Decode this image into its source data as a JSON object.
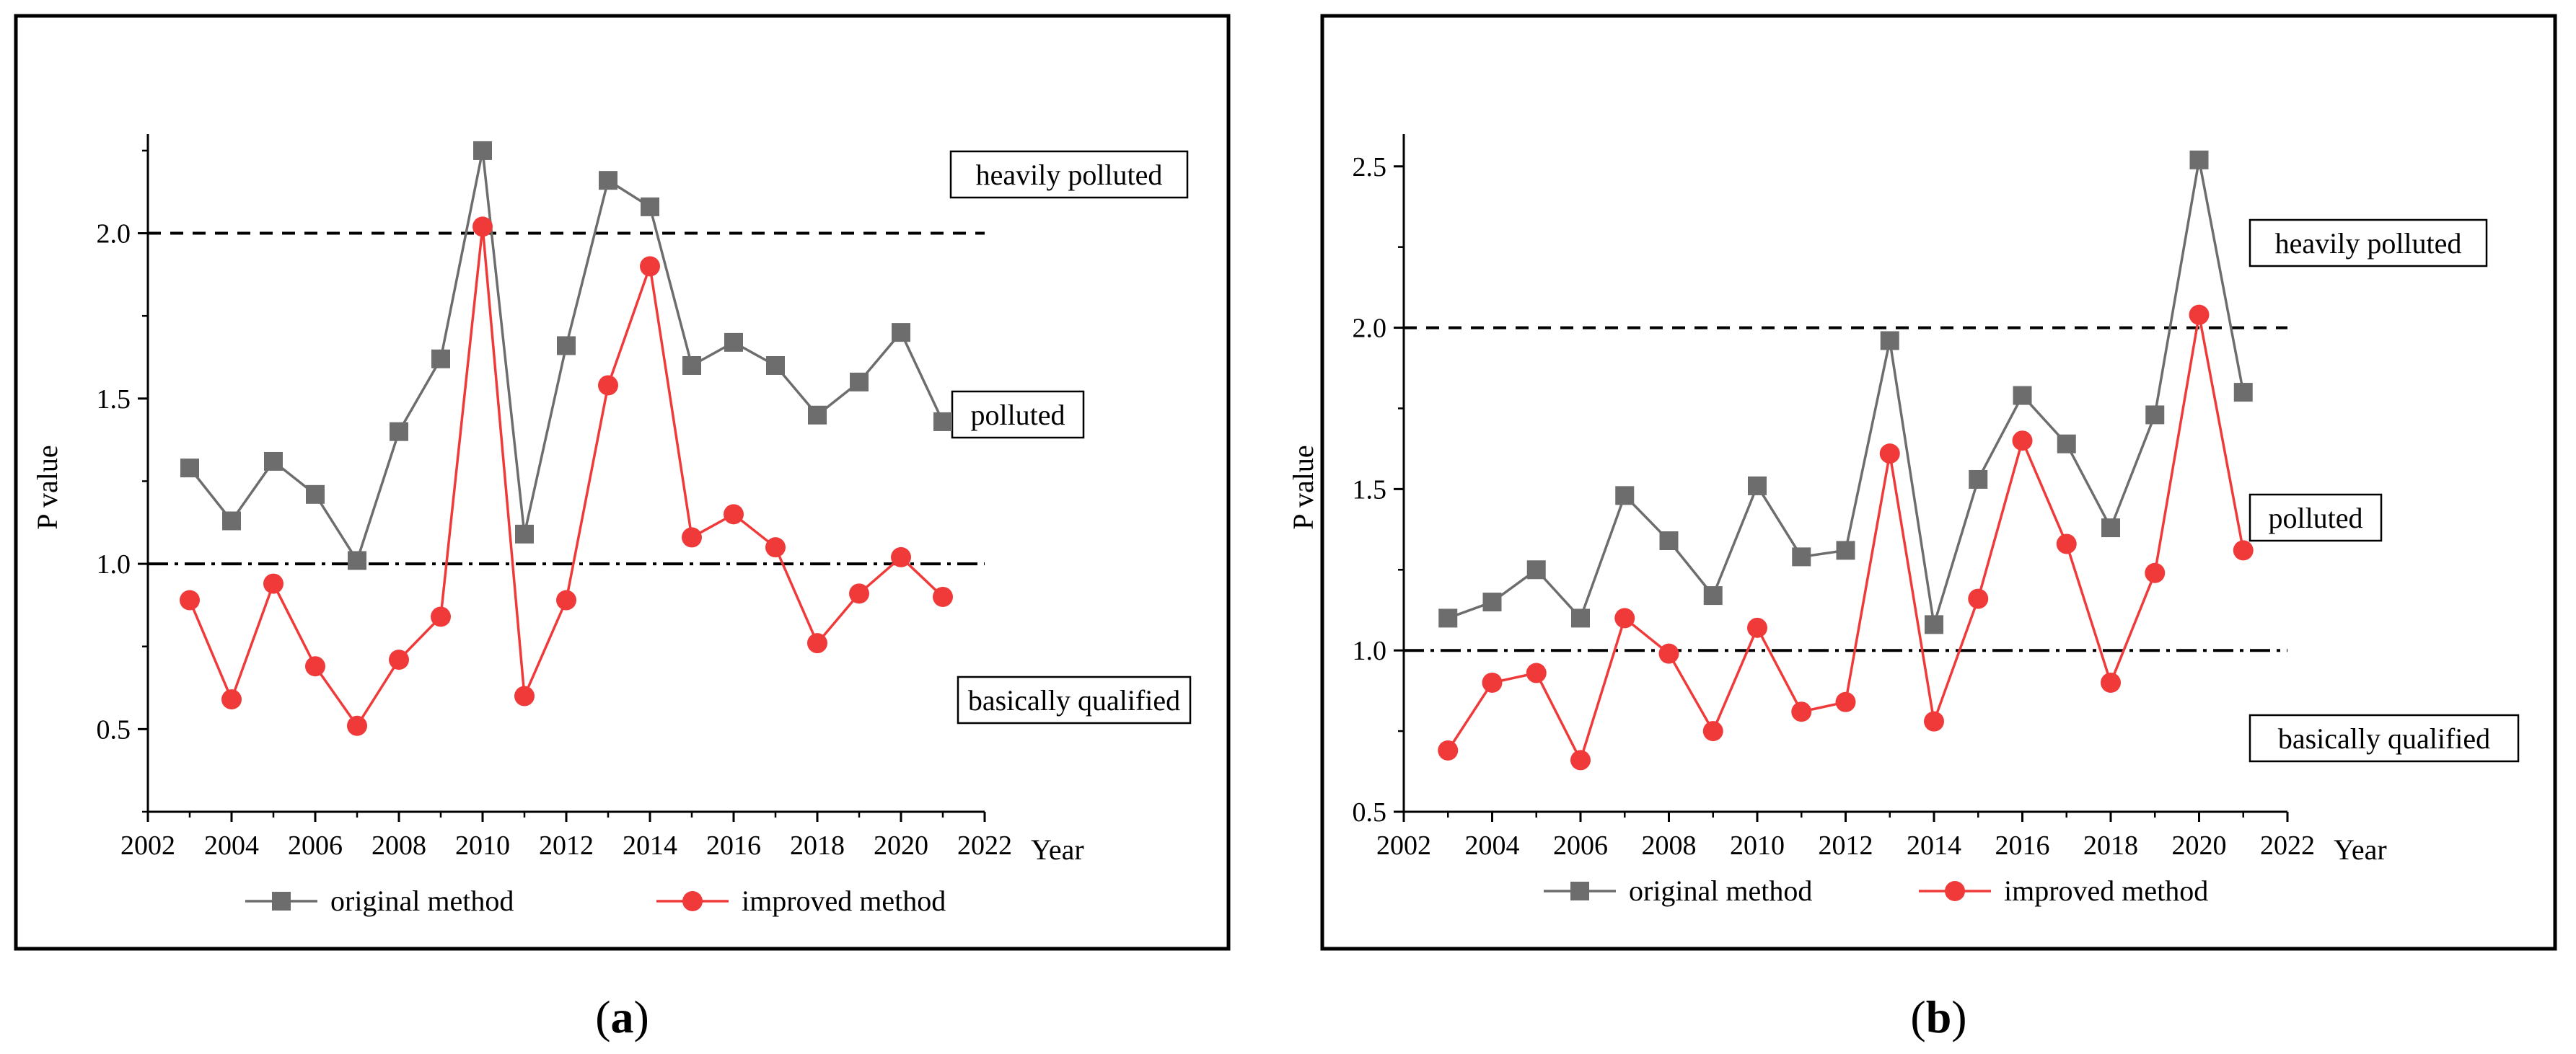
{
  "chart_data": [
    {
      "type": "line",
      "panel_label": "a",
      "ylabel": "P value",
      "xlabel": "Year",
      "xlim": [
        2002,
        2022
      ],
      "ylim": [
        0.25,
        2.3
      ],
      "x_ticks": [
        2002,
        2004,
        2006,
        2008,
        2010,
        2012,
        2014,
        2016,
        2018,
        2020,
        2022
      ],
      "y_ticks": [
        0.5,
        1.0,
        1.5,
        2.0
      ],
      "x_tick_labels": [
        "2002",
        "2004",
        "2006",
        "2008",
        "2010",
        "2012",
        "2014",
        "2016",
        "2018",
        "2020",
        "2022"
      ],
      "y_tick_labels": [
        "0.5",
        "1.0",
        "1.5",
        "2.0"
      ],
      "x": [
        2003,
        2004,
        2005,
        2006,
        2007,
        2008,
        2009,
        2010,
        2011,
        2012,
        2013,
        2014,
        2015,
        2016,
        2017,
        2018,
        2019,
        2020,
        2021
      ],
      "series": [
        {
          "name": "original method",
          "color": "#6d6d6d",
          "marker": "square",
          "values": [
            1.29,
            1.13,
            1.31,
            1.21,
            1.01,
            1.4,
            1.62,
            2.25,
            1.09,
            1.66,
            2.16,
            2.08,
            1.6,
            1.67,
            1.6,
            1.45,
            1.55,
            1.7,
            1.43
          ]
        },
        {
          "name": "improved method",
          "color": "#f03a3a",
          "marker": "circle",
          "values": [
            0.89,
            0.59,
            0.94,
            0.69,
            0.51,
            0.71,
            0.84,
            2.02,
            0.6,
            0.89,
            1.54,
            1.9,
            1.08,
            1.15,
            1.05,
            0.76,
            0.91,
            1.02,
            0.9
          ]
        }
      ],
      "thresholds": [
        {
          "value": 2.0,
          "style": "dashed"
        },
        {
          "value": 1.0,
          "style": "dashdot"
        }
      ],
      "zone_labels": [
        "heavily polluted",
        "polluted",
        "basically qualified"
      ]
    },
    {
      "type": "line",
      "panel_label": "b",
      "ylabel": "P value",
      "xlabel": "Year",
      "xlim": [
        2002,
        2022
      ],
      "ylim": [
        0.5,
        2.6
      ],
      "x_ticks": [
        2002,
        2004,
        2006,
        2008,
        2010,
        2012,
        2014,
        2016,
        2018,
        2020,
        2022
      ],
      "y_ticks": [
        0.5,
        1.0,
        1.5,
        2.0,
        2.5
      ],
      "x_tick_labels": [
        "2002",
        "2004",
        "2006",
        "2008",
        "2010",
        "2012",
        "2014",
        "2016",
        "2018",
        "2020",
        "2022"
      ],
      "y_tick_labels": [
        "0.5",
        "1.0",
        "1.5",
        "2.0",
        "2.5"
      ],
      "x": [
        2003,
        2004,
        2005,
        2006,
        2007,
        2008,
        2009,
        2010,
        2011,
        2012,
        2013,
        2014,
        2015,
        2016,
        2017,
        2018,
        2019,
        2020,
        2021
      ],
      "series": [
        {
          "name": "original method",
          "color": "#6d6d6d",
          "marker": "square",
          "values": [
            1.1,
            1.15,
            1.25,
            1.1,
            1.48,
            1.34,
            1.17,
            1.51,
            1.29,
            1.31,
            1.96,
            1.08,
            1.53,
            1.79,
            1.64,
            1.38,
            1.73,
            2.52,
            1.8
          ]
        },
        {
          "name": "improved method",
          "color": "#f03a3a",
          "marker": "circle",
          "values": [
            0.69,
            0.9,
            0.93,
            0.66,
            1.1,
            0.99,
            0.75,
            1.07,
            0.81,
            0.84,
            1.61,
            0.78,
            1.16,
            1.65,
            1.33,
            0.9,
            1.24,
            2.04,
            1.31
          ]
        }
      ],
      "thresholds": [
        {
          "value": 2.0,
          "style": "dashed"
        },
        {
          "value": 1.0,
          "style": "dashdot"
        }
      ],
      "zone_labels": [
        "heavily polluted",
        "polluted",
        "basically qualified"
      ]
    }
  ]
}
